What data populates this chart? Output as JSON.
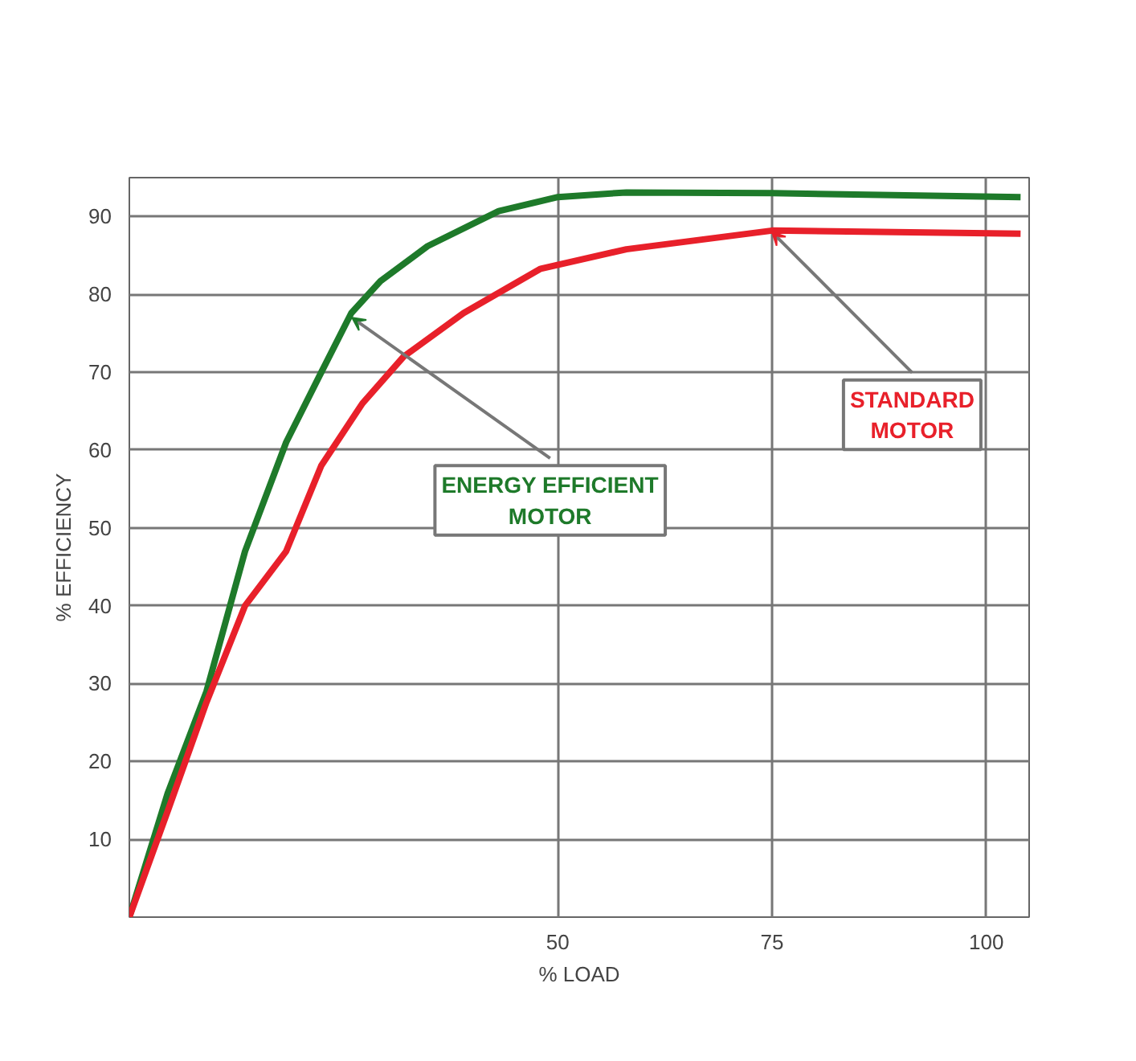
{
  "chart_data": {
    "type": "line",
    "xlabel": "% LOAD",
    "ylabel": "% EFFICIENCY",
    "xlim": [
      0,
      105
    ],
    "xticks": [
      50,
      75,
      100
    ],
    "ylim": [
      0,
      95
    ],
    "yticks": [
      10,
      20,
      30,
      40,
      50,
      60,
      70,
      80,
      90
    ],
    "grid": true,
    "series": [
      {
        "color": "#1e7a2a",
        "x": [
          0,
          4.5,
          9,
          13.5,
          18.3,
          22.4,
          25.9,
          29.3,
          34.8,
          43.1,
          50,
          58,
          75,
          104
        ],
        "values": [
          0,
          16,
          29,
          47,
          61,
          70,
          77.6,
          81.7,
          86.2,
          90.7,
          92.5,
          93.1,
          93,
          92.5
        ]
      },
      {
        "color": "#e8202a",
        "x": [
          0,
          4.5,
          9,
          13.5,
          18.3,
          22.4,
          27.2,
          32,
          39,
          48,
          58,
          75,
          104
        ],
        "values": [
          0,
          13.7,
          27.6,
          40,
          47,
          58,
          66,
          72,
          77.6,
          83.3,
          85.8,
          88.2,
          87.8
        ]
      }
    ],
    "annotations": [
      {
        "text": "ENERGY EFFICIENT\nMOTOR",
        "x": 26,
        "y": 77
      },
      {
        "text": "STANDARD\nMOTOR",
        "x": 75,
        "y": 88
      }
    ]
  }
}
